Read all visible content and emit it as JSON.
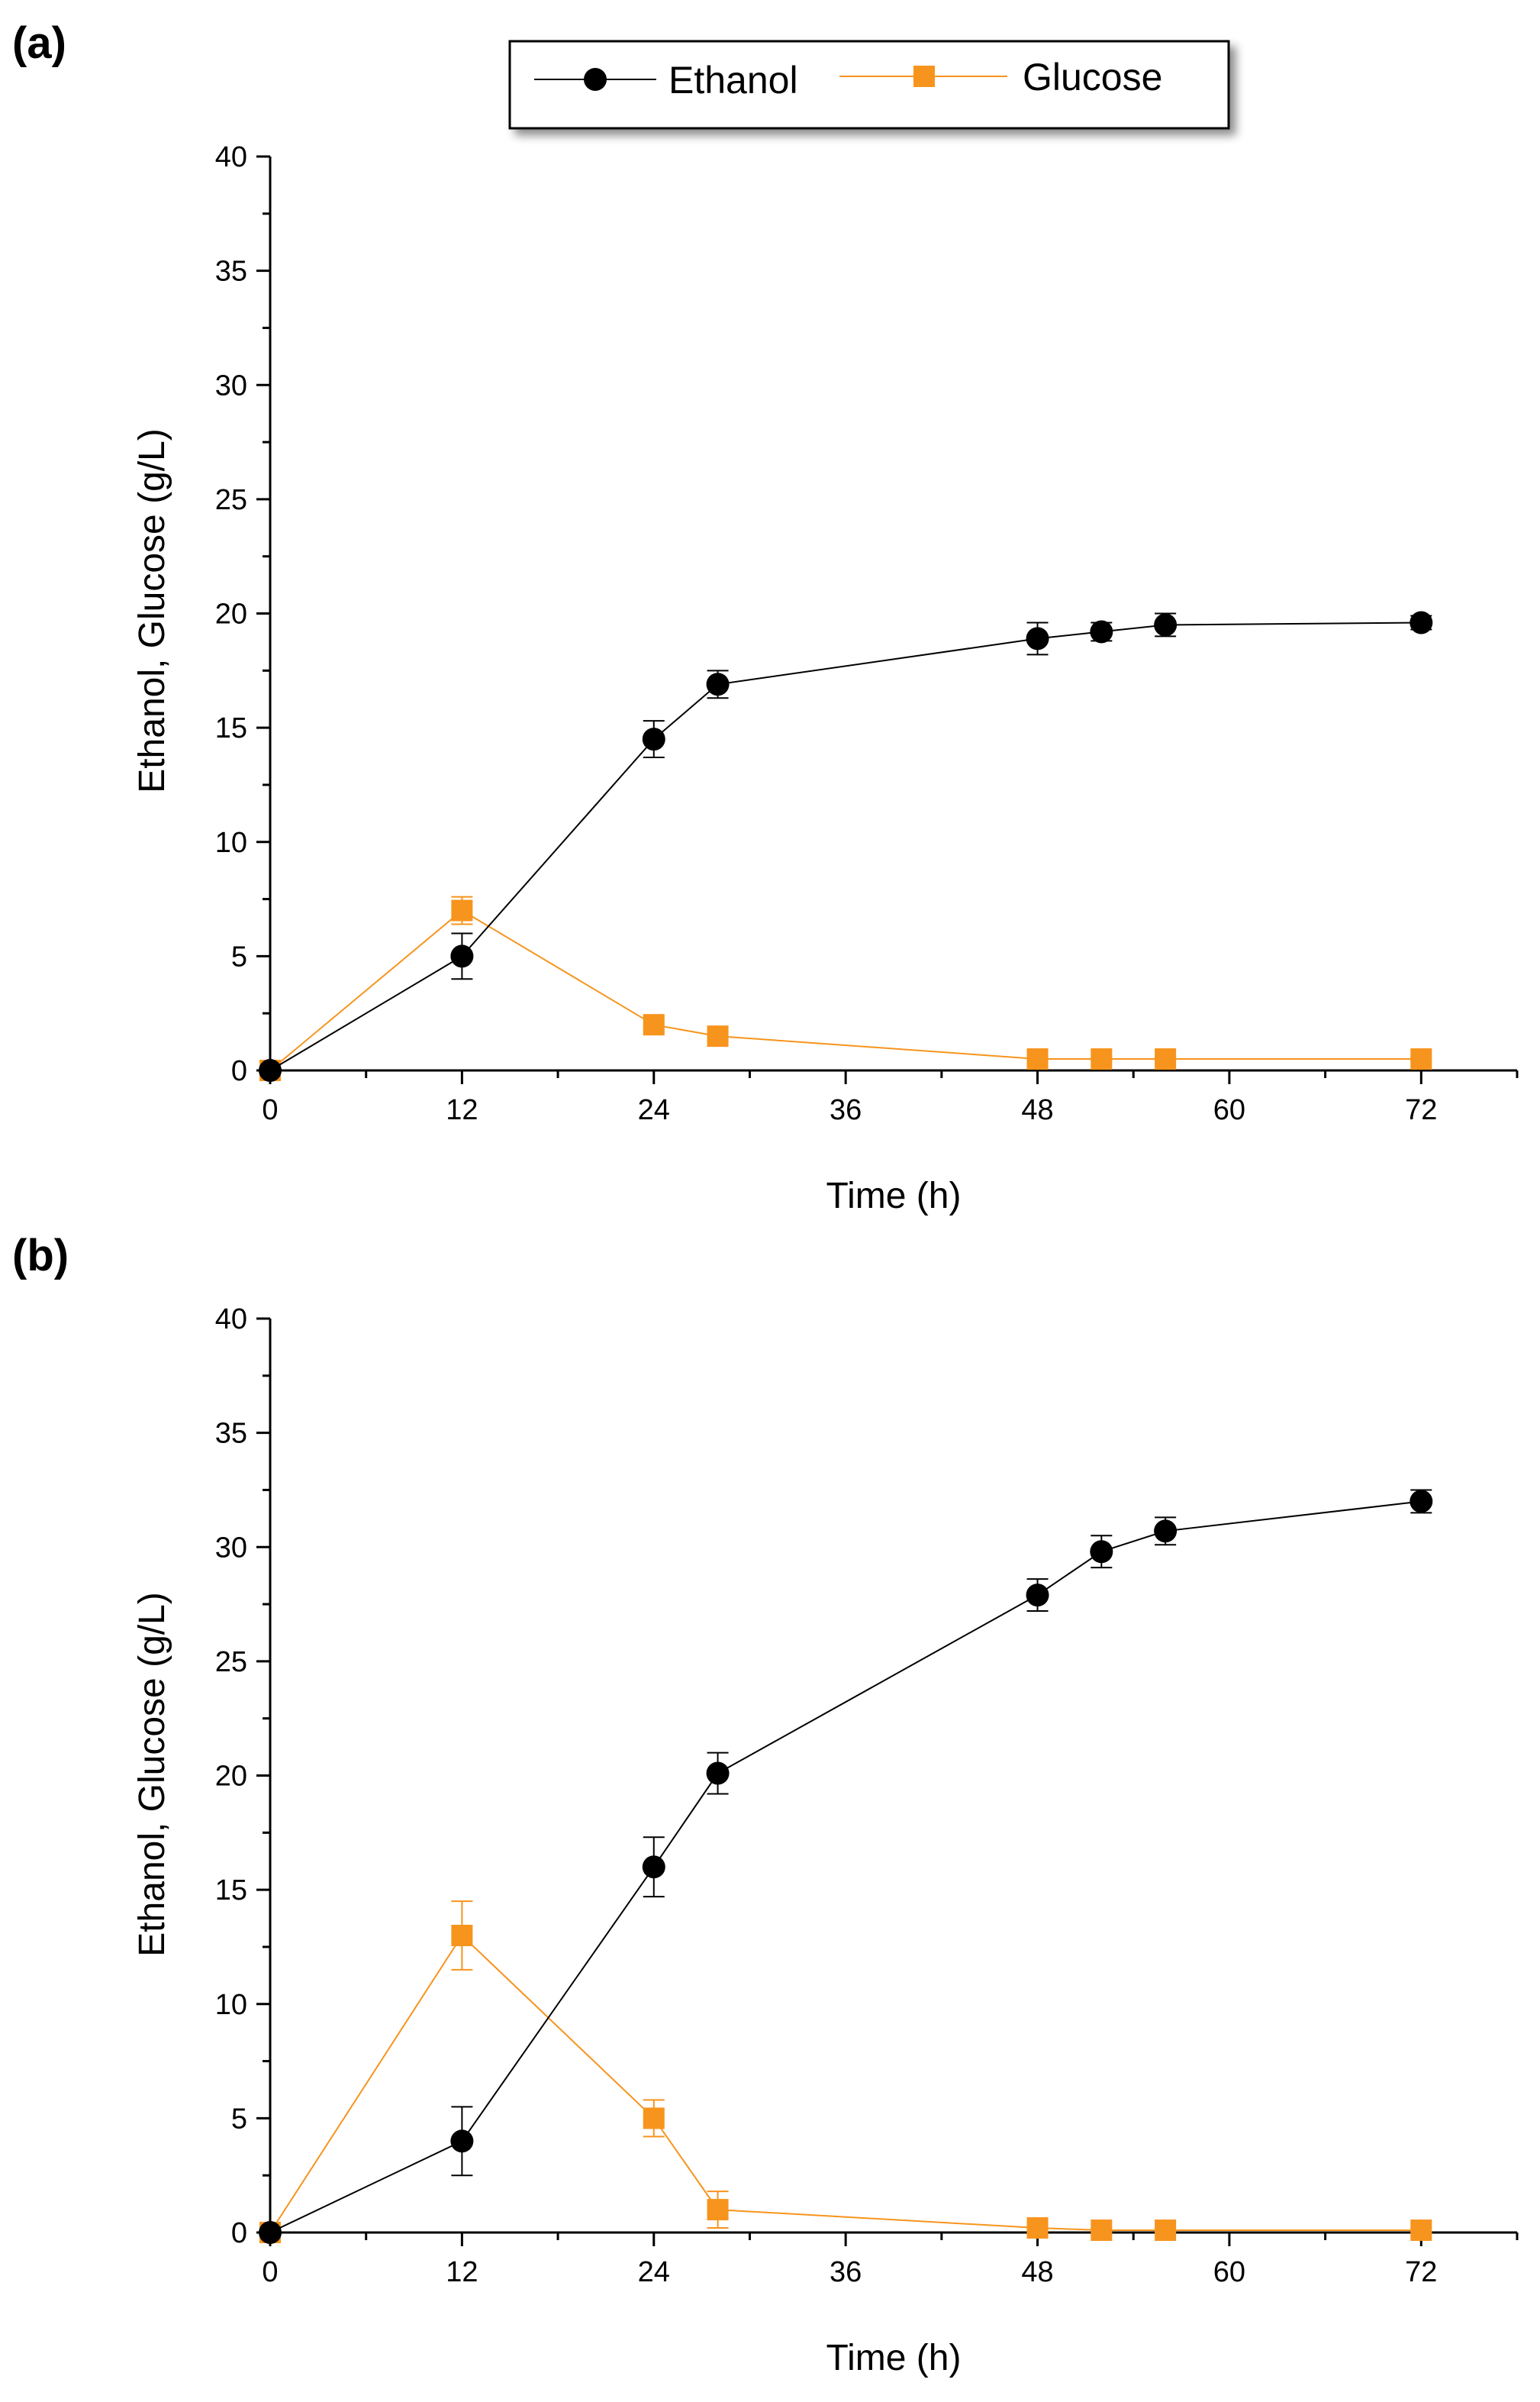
{
  "legend": {
    "entries": [
      {
        "name": "Ethanol",
        "color": "#000000",
        "marker": "circle"
      },
      {
        "name": "Glucose",
        "color": "#f7941d",
        "marker": "square"
      }
    ]
  },
  "chart_data": [
    {
      "type": "line",
      "panel_label": "(a)",
      "xlabel": "Time (h)",
      "ylabel": "Ethanol, Glucose (g/L)",
      "xlim": [
        0,
        78
      ],
      "ylim": [
        0,
        40
      ],
      "xticks": [
        0,
        12,
        24,
        36,
        48,
        60,
        72
      ],
      "yticks": [
        0,
        5,
        10,
        15,
        20,
        25,
        30,
        35,
        40
      ],
      "x": [
        0,
        12,
        24,
        28,
        48,
        52,
        56,
        72
      ],
      "series": [
        {
          "name": "Ethanol",
          "color": "#000000",
          "marker": "circle",
          "values": [
            0,
            5.0,
            14.5,
            16.9,
            18.9,
            19.2,
            19.5,
            19.6
          ],
          "errors": [
            0,
            1.0,
            0.8,
            0.6,
            0.7,
            0.4,
            0.5,
            0.3
          ]
        },
        {
          "name": "Glucose",
          "color": "#f7941d",
          "marker": "square",
          "values": [
            0,
            7.0,
            2.0,
            1.5,
            0.5,
            0.5,
            0.5,
            0.5
          ],
          "errors": [
            0,
            0.6,
            0.3,
            0.2,
            0.1,
            0.1,
            0.1,
            0.1
          ]
        }
      ]
    },
    {
      "type": "line",
      "panel_label": "(b)",
      "xlabel": "Time (h)",
      "ylabel": "Ethanol, Glucose (g/L)",
      "xlim": [
        0,
        78
      ],
      "ylim": [
        0,
        40
      ],
      "xticks": [
        0,
        12,
        24,
        36,
        48,
        60,
        72
      ],
      "yticks": [
        0,
        5,
        10,
        15,
        20,
        25,
        30,
        35,
        40
      ],
      "x": [
        0,
        12,
        24,
        28,
        48,
        52,
        56,
        72
      ],
      "series": [
        {
          "name": "Ethanol",
          "color": "#000000",
          "marker": "circle",
          "values": [
            0,
            4.0,
            16.0,
            20.1,
            27.9,
            29.8,
            30.7,
            32.0
          ],
          "errors": [
            0,
            1.5,
            1.3,
            0.9,
            0.7,
            0.7,
            0.6,
            0.5
          ]
        },
        {
          "name": "Glucose",
          "color": "#f7941d",
          "marker": "square",
          "values": [
            0,
            13.0,
            5.0,
            1.0,
            0.2,
            0.1,
            0.1,
            0.1
          ],
          "errors": [
            0,
            1.5,
            0.8,
            0.8,
            0.1,
            0.1,
            0.1,
            0.1
          ]
        }
      ]
    }
  ]
}
